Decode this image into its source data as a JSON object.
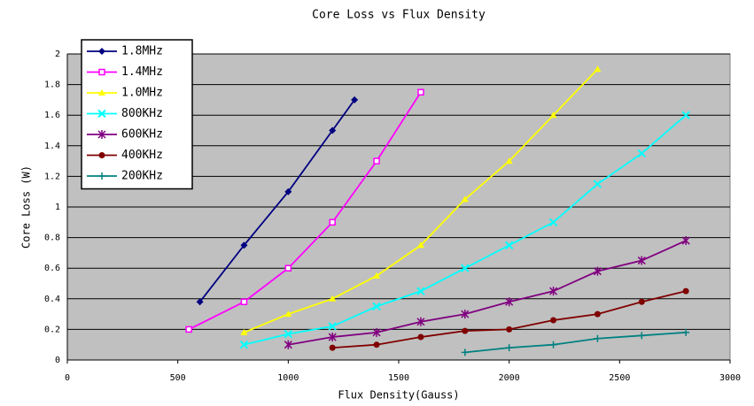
{
  "chart_data": {
    "type": "line",
    "title": "Core Loss vs Flux Density",
    "xlabel": "Flux Density(Gauss)",
    "ylabel": "Core Loss (W)",
    "xlim": [
      0,
      3000
    ],
    "xticks": [
      0,
      500,
      1000,
      1500,
      2000,
      2500,
      3000
    ],
    "ylim": [
      0,
      2
    ],
    "yticks": [
      0,
      0.2,
      0.4,
      0.6,
      0.8,
      1,
      1.2,
      1.4,
      1.6,
      1.8,
      2
    ],
    "grid": true,
    "legend": "upper left",
    "series": [
      {
        "name": "1.8MHz",
        "color": "#000080",
        "marker": "diamond",
        "x": [
          600,
          800,
          1000,
          1200,
          1300
        ],
        "values": [
          0.38,
          0.75,
          1.1,
          1.5,
          1.7
        ]
      },
      {
        "name": "1.4MHz",
        "color": "#ff00ff",
        "marker": "square",
        "x": [
          550,
          800,
          1000,
          1200,
          1400,
          1600
        ],
        "values": [
          0.2,
          0.38,
          0.6,
          0.9,
          1.3,
          1.75
        ]
      },
      {
        "name": "1.0MHz",
        "color": "#ffff00",
        "marker": "triangle",
        "x": [
          800,
          1000,
          1200,
          1400,
          1600,
          1800,
          2000,
          2200,
          2400
        ],
        "values": [
          0.18,
          0.3,
          0.4,
          0.55,
          0.75,
          1.05,
          1.3,
          1.6,
          1.9
        ]
      },
      {
        "name": "800KHz",
        "color": "#00ffff",
        "marker": "x",
        "x": [
          800,
          1000,
          1200,
          1400,
          1600,
          1800,
          2000,
          2200,
          2400,
          2600,
          2800
        ],
        "values": [
          0.1,
          0.17,
          0.22,
          0.35,
          0.45,
          0.6,
          0.75,
          0.9,
          1.15,
          1.35,
          1.6
        ]
      },
      {
        "name": "600KHz",
        "color": "#800080",
        "marker": "star",
        "x": [
          1000,
          1200,
          1400,
          1600,
          1800,
          2000,
          2200,
          2400,
          2600,
          2800
        ],
        "values": [
          0.1,
          0.15,
          0.18,
          0.25,
          0.3,
          0.38,
          0.45,
          0.58,
          0.65,
          0.78
        ]
      },
      {
        "name": "400KHz",
        "color": "#800000",
        "marker": "circle",
        "x": [
          1200,
          1400,
          1600,
          1800,
          2000,
          2200,
          2400,
          2600,
          2800
        ],
        "values": [
          0.08,
          0.1,
          0.15,
          0.19,
          0.2,
          0.26,
          0.3,
          0.38,
          0.45
        ]
      },
      {
        "name": "200KHz",
        "color": "#008080",
        "marker": "plus",
        "x": [
          1800,
          2000,
          2200,
          2400,
          2600,
          2800
        ],
        "values": [
          0.05,
          0.08,
          0.1,
          0.14,
          0.16,
          0.18
        ]
      }
    ]
  }
}
